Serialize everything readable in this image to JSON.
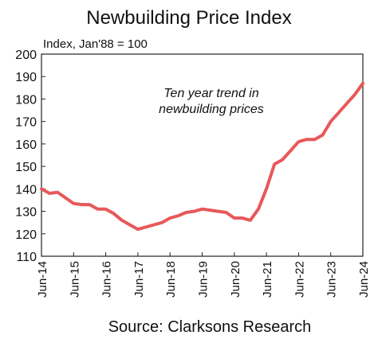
{
  "chart_data": {
    "type": "line",
    "title": "Newbuilding Price Index",
    "subtitle": "Index, Jan'88 = 100",
    "annotation": [
      "Ten year trend in",
      "newbuilding prices"
    ],
    "source": "Source: Clarksons Research",
    "x": [
      "2014-06",
      "2014-09",
      "2014-12",
      "2015-03",
      "2015-06",
      "2015-09",
      "2015-12",
      "2016-03",
      "2016-06",
      "2016-09",
      "2016-12",
      "2017-03",
      "2017-06",
      "2017-09",
      "2017-12",
      "2018-03",
      "2018-06",
      "2018-09",
      "2018-12",
      "2019-03",
      "2019-06",
      "2019-09",
      "2019-12",
      "2020-03",
      "2020-06",
      "2020-09",
      "2020-12",
      "2021-03",
      "2021-06",
      "2021-09",
      "2021-12",
      "2022-03",
      "2022-06",
      "2022-09",
      "2022-12",
      "2023-03",
      "2023-06",
      "2023-09",
      "2023-12",
      "2024-03",
      "2024-06"
    ],
    "series": [
      {
        "name": "Newbuilding Price Index",
        "color": "#e8585a",
        "values": [
          140,
          138,
          138.5,
          136,
          133.5,
          133,
          133,
          131,
          131,
          129,
          126,
          124,
          122,
          123,
          124,
          125,
          127,
          128,
          129.5,
          130,
          131,
          130.5,
          130,
          129.5,
          127,
          127,
          126,
          131,
          140,
          151,
          153,
          157,
          161,
          162,
          162,
          164,
          170,
          174,
          178,
          182,
          187
        ]
      }
    ],
    "xlim": [
      "2014-06",
      "2024-06"
    ],
    "xticks": [
      {
        "value": "2014-06",
        "label": "Jun-14"
      },
      {
        "value": "2015-06",
        "label": "Jun-15"
      },
      {
        "value": "2016-06",
        "label": "Jun-16"
      },
      {
        "value": "2017-06",
        "label": "Jun-17"
      },
      {
        "value": "2018-06",
        "label": "Jun-18"
      },
      {
        "value": "2019-06",
        "label": "Jun-19"
      },
      {
        "value": "2020-06",
        "label": "Jun-20"
      },
      {
        "value": "2021-06",
        "label": "Jun-21"
      },
      {
        "value": "2022-06",
        "label": "Jun-22"
      },
      {
        "value": "2023-06",
        "label": "Jun-23"
      },
      {
        "value": "2024-06",
        "label": "Jun-24"
      }
    ],
    "ylim": [
      110,
      200
    ],
    "yticks": [
      110,
      120,
      130,
      140,
      150,
      160,
      170,
      180,
      190,
      200
    ],
    "grid": false
  }
}
